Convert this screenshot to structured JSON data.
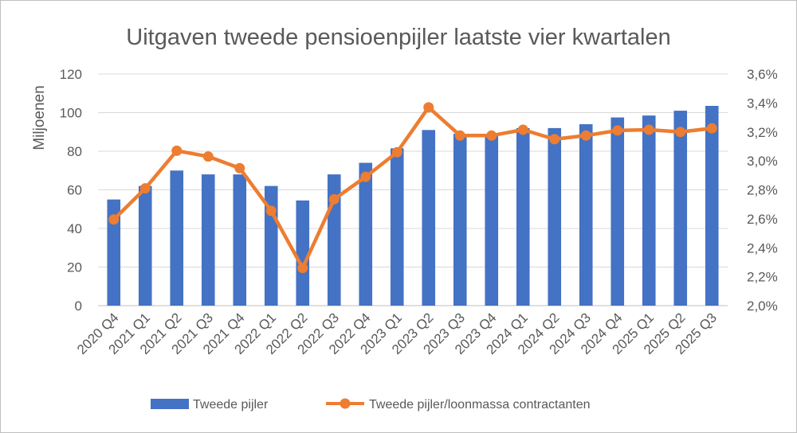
{
  "chart_data": {
    "type": "bar+line",
    "title": "Uitgaven tweede pensioenpijler laatste vier kwartalen",
    "ylabel": "Miljoenen",
    "ylabel_right": "",
    "categories": [
      "2020 Q4",
      "2021 Q1",
      "2021 Q2",
      "2021 Q3",
      "2021 Q4",
      "2022 Q1",
      "2022 Q2",
      "2022 Q3",
      "2022 Q4",
      "2023 Q1",
      "2023 Q2",
      "2023 Q3",
      "2023 Q4",
      "2024 Q1",
      "2024 Q2",
      "2024 Q3",
      "2024 Q4",
      "2025 Q1",
      "2025 Q2",
      "2025 Q3"
    ],
    "series": [
      {
        "name": "Tweede pijler",
        "type": "bar",
        "axis": "left",
        "color": "#4472C4",
        "values": [
          55,
          62,
          70,
          68,
          68,
          62,
          54.5,
          68,
          74,
          81.5,
          91,
          89,
          89,
          92,
          92,
          94,
          97.5,
          98.5,
          101,
          103.5
        ]
      },
      {
        "name": "Tweede pijler/loonmassa contractanten",
        "type": "line",
        "axis": "right",
        "color": "#ED7D31",
        "values": [
          2.595,
          2.81,
          3.07,
          3.03,
          2.95,
          2.655,
          2.26,
          2.735,
          2.89,
          3.06,
          3.37,
          3.175,
          3.175,
          3.215,
          3.15,
          3.175,
          3.21,
          3.215,
          3.2,
          3.225
        ]
      }
    ],
    "ylim": [
      0,
      120
    ],
    "yticks": [
      0,
      20,
      40,
      60,
      80,
      100,
      120
    ],
    "ylim_right": [
      2.0,
      3.6
    ],
    "yticks_right": [
      "2,0%",
      "2,2%",
      "2,4%",
      "2,6%",
      "2,8%",
      "3,0%",
      "3,2%",
      "3,4%",
      "3,6%"
    ],
    "grid": true,
    "legend_position": "bottom"
  }
}
